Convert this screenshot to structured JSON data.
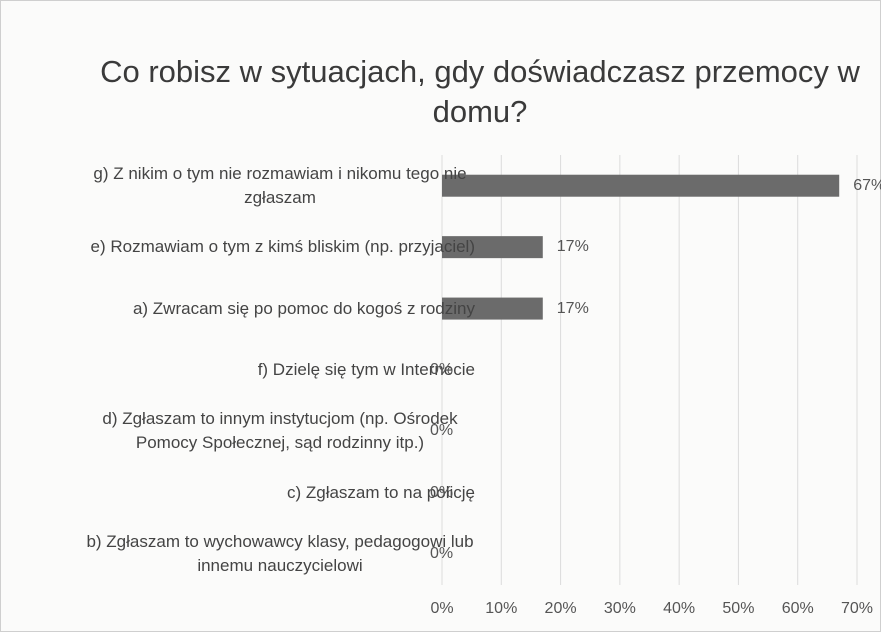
{
  "chart_data": {
    "type": "bar",
    "orientation": "horizontal",
    "title": "Co robisz w sytuacjach, gdy doświadczasz przemocy w domu?",
    "categories": [
      "g) Z nikim o tym nie rozmawiam i nikomu tego nie zgłaszam",
      "e) Rozmawiam o tym z kimś bliskim (np. przyjaciel)",
      "a) Zwracam się po pomoc do kogoś z rodziny",
      "f) Dzielę się tym w Internecie",
      "d) Zgłaszam to innym instytucjom (np. Ośrodek Pomocy Społecznej, sąd rodzinny itp.)",
      "c) Zgłaszam to na policję",
      "b) Zgłaszam to wychowawcy klasy, pedagogowi lub innemu nauczycielowi"
    ],
    "values": [
      67,
      17,
      17,
      0,
      0,
      0,
      0
    ],
    "value_labels": [
      "67%",
      "17%",
      "17%",
      "0%",
      "0%",
      "0%",
      "0%"
    ],
    "color": "#6b6b6b",
    "xlim": [
      0,
      70
    ],
    "xticks": [
      {
        "value": 0,
        "label": "0%"
      },
      {
        "value": 10,
        "label": "10%"
      },
      {
        "value": 20,
        "label": "20%"
      },
      {
        "value": 30,
        "label": "30%"
      },
      {
        "value": 40,
        "label": "40%"
      },
      {
        "value": 50,
        "label": "50%"
      },
      {
        "value": 60,
        "label": "60%"
      },
      {
        "value": 70,
        "label": "70%"
      }
    ],
    "grid": true
  }
}
